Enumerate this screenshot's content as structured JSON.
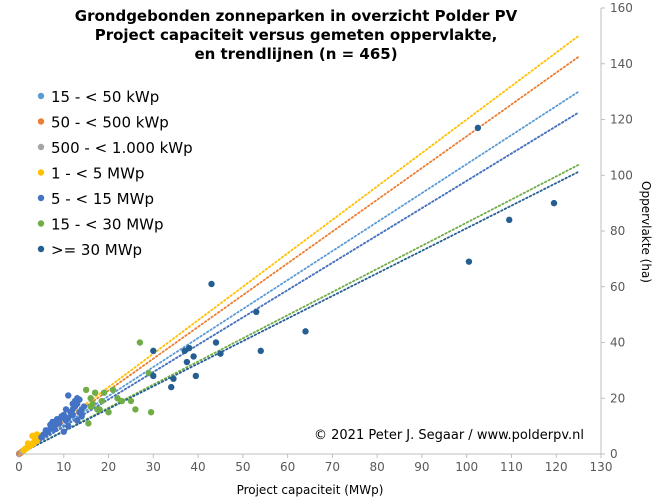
{
  "chart_data": {
    "type": "scatter",
    "title_lines": [
      "Grondgebonden zonneparken in overzicht Polder PV",
      "Project capaciteit versus gemeten oppervlakte,",
      "en trendlijnen  (n = 465)"
    ],
    "xlabel": "Project capaciteit (MWp)",
    "ylabel": "Oppervlakte  (ha)",
    "xlim": [
      0,
      130
    ],
    "ylim": [
      0,
      160
    ],
    "x_ticks": [
      "0",
      "10",
      "20",
      "30",
      "40",
      "50",
      "60",
      "70",
      "80",
      "90",
      "100",
      "110",
      "120",
      "130"
    ],
    "y_ticks": [
      "0",
      "20",
      "40",
      "60",
      "80",
      "100",
      "120",
      "140",
      "160"
    ],
    "y_axis_side": "right",
    "grid": false,
    "legend_position": "top-left",
    "copyright": "© 2021 Peter J. Segaar / www.polderpv.nl",
    "series": [
      {
        "name": "15 - < 50 kWp",
        "color": "#5B9BD5",
        "points": [
          [
            0.02,
            0.05
          ],
          [
            0.03,
            0.08
          ],
          [
            0.04,
            0.1
          ]
        ],
        "trend_slope": 1.04
      },
      {
        "name": "50 - < 500 kWp",
        "color": "#ED7D31",
        "points": [
          [
            0.1,
            0.15
          ],
          [
            0.2,
            0.25
          ],
          [
            0.3,
            0.4
          ],
          [
            0.45,
            0.5
          ]
        ],
        "trend_slope": 1.14
      },
      {
        "name": "500 - < 1.000 kWp",
        "color": "#A5A5A5",
        "points": [
          [
            0.6,
            0.8
          ],
          [
            0.7,
            0.9
          ],
          [
            0.8,
            1.0
          ],
          [
            0.9,
            1.1
          ],
          [
            0.95,
            1.2
          ]
        ],
        "trend_slope": 0.98
      },
      {
        "name": "1 - < 5 MWp",
        "color": "#FFC000",
        "points": [
          [
            1.0,
            1.3
          ],
          [
            1.2,
            1.5
          ],
          [
            1.5,
            2.0
          ],
          [
            1.8,
            2.2
          ],
          [
            2.0,
            2.5
          ],
          [
            2.2,
            2.8
          ],
          [
            2.5,
            3.0
          ],
          [
            2.8,
            3.3
          ],
          [
            3.0,
            3.5
          ],
          [
            3.2,
            4.0
          ],
          [
            3.5,
            4.2
          ],
          [
            3.8,
            4.5
          ],
          [
            4.0,
            5.0
          ],
          [
            4.2,
            5.5
          ],
          [
            4.5,
            6.0
          ],
          [
            4.8,
            6.5
          ],
          [
            2.0,
            3.8
          ],
          [
            3.0,
            6.5
          ],
          [
            3.5,
            5.8
          ],
          [
            4.0,
            7.0
          ]
        ],
        "trend_slope": 1.2
      },
      {
        "name": "5 - < 15 MWp",
        "color": "#4472C4",
        "points": [
          [
            5,
            6
          ],
          [
            5.5,
            7
          ],
          [
            6,
            7.5
          ],
          [
            6.5,
            8
          ],
          [
            7,
            9
          ],
          [
            7.5,
            10
          ],
          [
            8,
            10.5
          ],
          [
            8.5,
            11
          ],
          [
            9,
            12
          ],
          [
            9.5,
            13
          ],
          [
            10,
            14
          ],
          [
            10.5,
            12
          ],
          [
            11,
            13
          ],
          [
            11.5,
            15
          ],
          [
            12,
            16
          ],
          [
            12.5,
            17
          ],
          [
            13,
            18
          ],
          [
            13.5,
            15
          ],
          [
            14,
            16
          ],
          [
            14.5,
            17
          ],
          [
            6,
            8.5
          ],
          [
            7,
            10.5
          ],
          [
            8,
            9
          ],
          [
            9,
            11
          ],
          [
            10,
            8
          ],
          [
            11,
            10
          ],
          [
            12,
            14
          ],
          [
            13,
            12
          ],
          [
            14,
            14
          ],
          [
            11,
            21
          ],
          [
            13,
            20
          ],
          [
            9.5,
            13.5
          ],
          [
            12,
            18
          ],
          [
            14,
            13.5
          ],
          [
            10.5,
            16
          ],
          [
            8.5,
            12.5
          ],
          [
            13.5,
            19.5
          ],
          [
            7.5,
            11.5
          ],
          [
            12.5,
            19
          ]
        ],
        "trend_slope": 0.98
      },
      {
        "name": "15 - < 30 MWp",
        "color": "#70AD47",
        "points": [
          [
            15,
            23
          ],
          [
            16,
            20
          ],
          [
            16.5,
            18
          ],
          [
            17,
            22
          ],
          [
            18,
            16
          ],
          [
            19,
            22
          ],
          [
            20,
            15
          ],
          [
            21,
            23
          ],
          [
            22,
            20
          ],
          [
            23,
            19
          ],
          [
            25,
            19
          ],
          [
            26,
            16
          ],
          [
            27,
            40
          ],
          [
            29,
            29
          ],
          [
            29.5,
            15
          ],
          [
            15.5,
            11
          ],
          [
            17.5,
            16
          ],
          [
            18.5,
            19
          ],
          [
            16,
            17
          ]
        ],
        "trend_slope": 0.83
      },
      {
        "name": ">= 30 MWp",
        "color": "#255E91",
        "points": [
          [
            30,
            28
          ],
          [
            30,
            37
          ],
          [
            34,
            24
          ],
          [
            34.5,
            27
          ],
          [
            37,
            37
          ],
          [
            37.5,
            33
          ],
          [
            38,
            38
          ],
          [
            39,
            35
          ],
          [
            39.5,
            28
          ],
          [
            43,
            61
          ],
          [
            44,
            40
          ],
          [
            45,
            36
          ],
          [
            53,
            51
          ],
          [
            54,
            37
          ],
          [
            64,
            44
          ],
          [
            100.5,
            69
          ],
          [
            102.5,
            117
          ],
          [
            109.5,
            84
          ],
          [
            119.5,
            90
          ]
        ],
        "trend_slope": 0.81
      }
    ]
  }
}
